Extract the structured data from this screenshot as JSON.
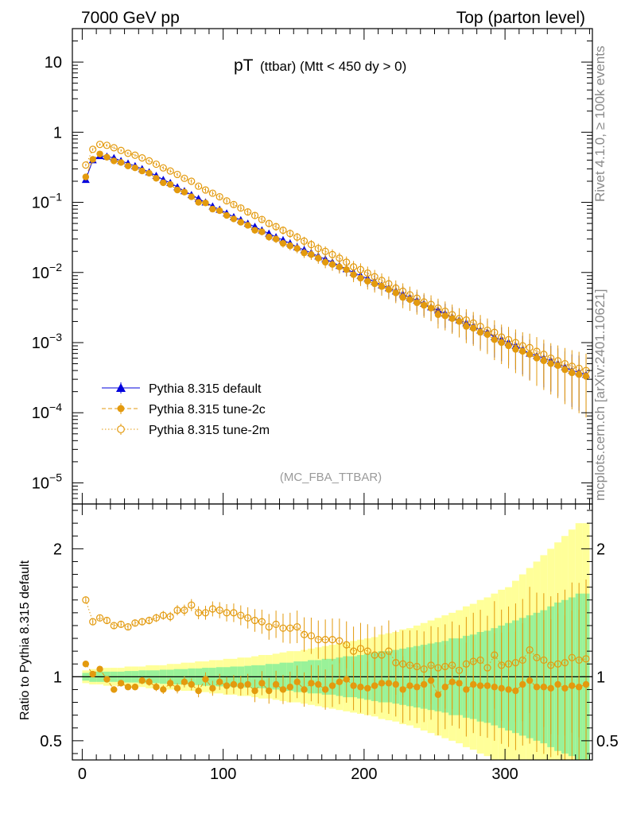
{
  "header": {
    "left": "7000 GeV pp",
    "right": "Top (parton level)"
  },
  "plot_title": {
    "main": "pT",
    "sub": "(ttbar) (Mtt < 450 dy > 0)"
  },
  "side_label_top": "Rivet 4.1.0, ≥ 100k events",
  "side_label_bottom": "mcplots.cern.ch [arXiv:2401.10621]",
  "analysis_tag": "(MC_FBA_TTBAR)",
  "ratio_ylabel": "Ratio to Pythia 8.315 default",
  "colors": {
    "default": "#0000dd",
    "tune2c": "#e39a0e",
    "tune2m": "#e39a0e",
    "band_inner": "#99f299",
    "band_outer": "#ffff99"
  },
  "chart_data": [
    {
      "type": "scatter",
      "title": "pT (ttbar) (Mtt < 450 dy > 0)",
      "yscale": "log",
      "xlim": [
        -7,
        362
      ],
      "ylim": [
        5e-06,
        30
      ],
      "x_ticks": [
        0,
        100,
        200,
        300
      ],
      "y_tick_labels": [
        "10^-5",
        "10^-4",
        "10^-3",
        "10^-2",
        "10^-1",
        "1",
        "10"
      ],
      "legend_position": "bottom-left",
      "legend": [
        "Pythia 8.315 default",
        "Pythia 8.315 tune-2c",
        "Pythia 8.315 tune-2m"
      ],
      "x": [
        2.5,
        7.5,
        12.5,
        17.5,
        22.5,
        27.5,
        32.5,
        37.5,
        42.5,
        47.5,
        52.5,
        57.5,
        62.5,
        67.5,
        72.5,
        77.5,
        82.5,
        87.5,
        92.5,
        97.5,
        102.5,
        107.5,
        112.5,
        117.5,
        122.5,
        127.5,
        132.5,
        137.5,
        142.5,
        147.5,
        152.5,
        157.5,
        162.5,
        167.5,
        172.5,
        177.5,
        182.5,
        187.5,
        192.5,
        197.5,
        202.5,
        207.5,
        212.5,
        217.5,
        222.5,
        227.5,
        232.5,
        237.5,
        242.5,
        247.5,
        252.5,
        257.5,
        262.5,
        267.5,
        272.5,
        277.5,
        282.5,
        287.5,
        292.5,
        297.5,
        302.5,
        307.5,
        312.5,
        317.5,
        322.5,
        327.5,
        332.5,
        337.5,
        342.5,
        347.5,
        352.5,
        357.5
      ],
      "series": [
        {
          "name": "Pythia 8.315 default",
          "marker": "triangle",
          "values": [
            0.21,
            0.4,
            0.46,
            0.45,
            0.43,
            0.39,
            0.36,
            0.33,
            0.3,
            0.27,
            0.24,
            0.21,
            0.19,
            0.165,
            0.145,
            0.128,
            0.113,
            0.1,
            0.088,
            0.079,
            0.07,
            0.062,
            0.056,
            0.05,
            0.045,
            0.04,
            0.036,
            0.032,
            0.029,
            0.026,
            0.023,
            0.021,
            0.019,
            0.017,
            0.0155,
            0.014,
            0.0125,
            0.0112,
            0.01,
            0.009,
            0.0082,
            0.0074,
            0.0066,
            0.006,
            0.0054,
            0.0049,
            0.0044,
            0.004,
            0.0036,
            0.0032,
            0.0029,
            0.0026,
            0.0023,
            0.0021,
            0.0019,
            0.0017,
            0.0015,
            0.0014,
            0.0012,
            0.0011,
            0.001,
            0.0009,
            0.0008,
            0.0007,
            0.00065,
            0.0006,
            0.00055,
            0.0005,
            0.00045,
            0.0004,
            0.00038,
            0.00035
          ]
        },
        {
          "name": "Pythia 8.315 tune-2c",
          "marker": "circle",
          "values": [
            0.23,
            0.41,
            0.49,
            0.44,
            0.39,
            0.37,
            0.33,
            0.31,
            0.28,
            0.26,
            0.22,
            0.19,
            0.18,
            0.15,
            0.14,
            0.12,
            0.1,
            0.098,
            0.08,
            0.076,
            0.065,
            0.058,
            0.052,
            0.047,
            0.04,
            0.038,
            0.032,
            0.03,
            0.026,
            0.024,
            0.022,
            0.019,
            0.018,
            0.016,
            0.014,
            0.013,
            0.012,
            0.011,
            0.0093,
            0.0083,
            0.0075,
            0.0069,
            0.0063,
            0.0057,
            0.0051,
            0.0044,
            0.0041,
            0.0037,
            0.0034,
            0.0031,
            0.0025,
            0.0024,
            0.0022,
            0.002,
            0.0017,
            0.0016,
            0.0014,
            0.0013,
            0.0011,
            0.001,
            0.0009,
            0.0008,
            0.00075,
            0.00068,
            0.0006,
            0.00055,
            0.0005,
            0.00047,
            0.00041,
            0.00037,
            0.00035,
            0.00033
          ]
        },
        {
          "name": "Pythia 8.315 tune-2m",
          "marker": "open-circle",
          "values": [
            0.34,
            0.57,
            0.67,
            0.65,
            0.6,
            0.55,
            0.5,
            0.47,
            0.43,
            0.39,
            0.35,
            0.31,
            0.28,
            0.25,
            0.22,
            0.2,
            0.17,
            0.15,
            0.135,
            0.12,
            0.105,
            0.093,
            0.083,
            0.073,
            0.065,
            0.057,
            0.05,
            0.045,
            0.04,
            0.036,
            0.032,
            0.028,
            0.025,
            0.022,
            0.02,
            0.018,
            0.016,
            0.014,
            0.012,
            0.011,
            0.0098,
            0.0087,
            0.0077,
            0.0069,
            0.006,
            0.0054,
            0.0048,
            0.0043,
            0.0038,
            0.0035,
            0.0031,
            0.0028,
            0.0025,
            0.0022,
            0.0021,
            0.0019,
            0.0017,
            0.0015,
            0.0014,
            0.0012,
            0.0011,
            0.001,
            0.0009,
            0.00085,
            0.00075,
            0.00068,
            0.0006,
            0.00055,
            0.0005,
            0.00046,
            0.00043,
            0.0004
          ]
        }
      ]
    },
    {
      "type": "scatter",
      "ylabel": "Ratio to Pythia 8.315 default",
      "xlim": [
        -7,
        362
      ],
      "ylim": [
        0.35,
        2.35
      ],
      "x_ticks": [
        0,
        100,
        200,
        300
      ],
      "y_ticks": [
        0.5,
        1,
        2
      ],
      "x": [
        2.5,
        7.5,
        12.5,
        17.5,
        22.5,
        27.5,
        32.5,
        37.5,
        42.5,
        47.5,
        52.5,
        57.5,
        62.5,
        67.5,
        72.5,
        77.5,
        82.5,
        87.5,
        92.5,
        97.5,
        102.5,
        107.5,
        112.5,
        117.5,
        122.5,
        127.5,
        132.5,
        137.5,
        142.5,
        147.5,
        152.5,
        157.5,
        162.5,
        167.5,
        172.5,
        177.5,
        182.5,
        187.5,
        192.5,
        197.5,
        202.5,
        207.5,
        212.5,
        217.5,
        222.5,
        227.5,
        232.5,
        237.5,
        242.5,
        247.5,
        252.5,
        257.5,
        262.5,
        267.5,
        272.5,
        277.5,
        282.5,
        287.5,
        292.5,
        297.5,
        302.5,
        307.5,
        312.5,
        317.5,
        322.5,
        327.5,
        332.5,
        337.5,
        342.5,
        347.5,
        352.5,
        357.5
      ],
      "band_halfwidth_inner": [
        0.03,
        0.04,
        0.04,
        0.04,
        0.04,
        0.04,
        0.045,
        0.045,
        0.05,
        0.05,
        0.05,
        0.055,
        0.055,
        0.06,
        0.06,
        0.065,
        0.065,
        0.07,
        0.07,
        0.075,
        0.075,
        0.08,
        0.08,
        0.085,
        0.09,
        0.09,
        0.1,
        0.1,
        0.11,
        0.11,
        0.12,
        0.12,
        0.13,
        0.13,
        0.14,
        0.14,
        0.15,
        0.16,
        0.16,
        0.17,
        0.18,
        0.19,
        0.2,
        0.2,
        0.21,
        0.22,
        0.23,
        0.24,
        0.25,
        0.26,
        0.27,
        0.28,
        0.3,
        0.3,
        0.32,
        0.33,
        0.35,
        0.36,
        0.38,
        0.4,
        0.42,
        0.44,
        0.46,
        0.48,
        0.5,
        0.52,
        0.55,
        0.58,
        0.6,
        0.62,
        0.65,
        0.65
      ],
      "band_halfwidth_outer": [
        0.05,
        0.06,
        0.06,
        0.07,
        0.07,
        0.07,
        0.08,
        0.08,
        0.08,
        0.09,
        0.09,
        0.09,
        0.1,
        0.1,
        0.11,
        0.11,
        0.12,
        0.12,
        0.13,
        0.13,
        0.14,
        0.14,
        0.15,
        0.15,
        0.16,
        0.17,
        0.17,
        0.18,
        0.19,
        0.2,
        0.2,
        0.21,
        0.22,
        0.23,
        0.24,
        0.25,
        0.26,
        0.27,
        0.28,
        0.29,
        0.3,
        0.31,
        0.33,
        0.34,
        0.35,
        0.37,
        0.38,
        0.4,
        0.42,
        0.44,
        0.46,
        0.48,
        0.5,
        0.52,
        0.55,
        0.57,
        0.6,
        0.62,
        0.65,
        0.68,
        0.7,
        0.75,
        0.8,
        0.85,
        0.9,
        0.95,
        1.0,
        1.05,
        1.1,
        1.15,
        1.2,
        1.2
      ],
      "series": [
        {
          "name": "Pythia 8.315 tune-2c",
          "marker": "circle",
          "values": [
            1.1,
            1.02,
            1.06,
            0.98,
            0.9,
            0.95,
            0.92,
            0.92,
            0.97,
            0.96,
            0.92,
            0.9,
            0.95,
            0.91,
            0.96,
            0.94,
            0.89,
            0.98,
            0.91,
            0.96,
            0.93,
            0.94,
            0.93,
            0.94,
            0.89,
            0.95,
            0.89,
            0.94,
            0.9,
            0.92,
            0.96,
            0.9,
            0.95,
            0.94,
            0.9,
            0.93,
            0.96,
            0.98,
            0.93,
            0.92,
            0.91,
            0.93,
            0.95,
            0.95,
            0.94,
            0.9,
            0.93,
            0.92,
            0.94,
            0.97,
            0.86,
            0.92,
            0.96,
            0.95,
            0.9,
            0.94,
            0.93,
            0.93,
            0.92,
            0.91,
            0.9,
            0.89,
            0.94,
            0.97,
            0.92,
            0.92,
            0.91,
            0.94,
            0.91,
            0.93,
            0.92,
            0.94
          ]
        },
        {
          "name": "Pythia 8.315 tune-2m",
          "marker": "open-circle",
          "values": [
            1.6,
            1.43,
            1.46,
            1.44,
            1.4,
            1.41,
            1.39,
            1.42,
            1.43,
            1.44,
            1.46,
            1.48,
            1.47,
            1.52,
            1.52,
            1.56,
            1.5,
            1.5,
            1.53,
            1.52,
            1.5,
            1.5,
            1.48,
            1.46,
            1.44,
            1.43,
            1.39,
            1.41,
            1.38,
            1.38,
            1.39,
            1.33,
            1.32,
            1.29,
            1.29,
            1.29,
            1.28,
            1.25,
            1.2,
            1.22,
            1.2,
            1.17,
            1.17,
            1.2,
            1.11,
            1.1,
            1.09,
            1.08,
            1.06,
            1.09,
            1.07,
            1.08,
            1.09,
            1.05,
            1.1,
            1.12,
            1.13,
            1.07,
            1.17,
            1.09,
            1.1,
            1.11,
            1.13,
            1.21,
            1.15,
            1.13,
            1.09,
            1.1,
            1.11,
            1.15,
            1.13,
            1.14
          ]
        }
      ]
    }
  ]
}
